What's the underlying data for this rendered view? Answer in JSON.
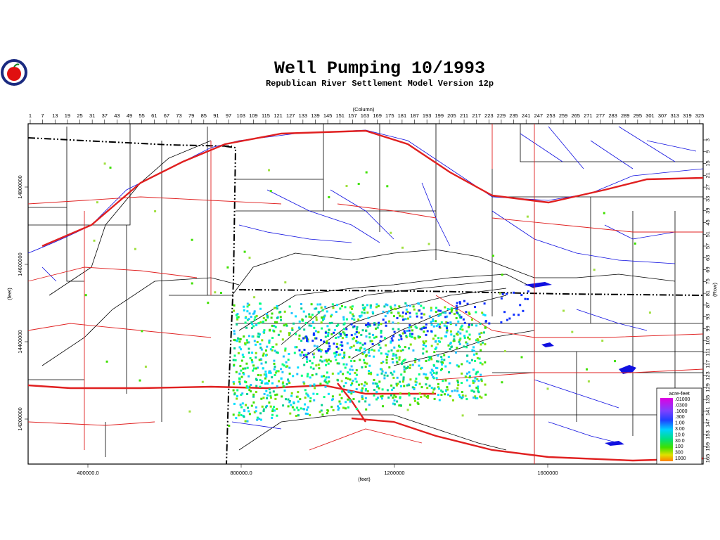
{
  "header": {
    "title": "Well Pumping 10/1993",
    "subtitle": "Republican River Settlement Model Version 12p"
  },
  "axes": {
    "column_label": "(Column)",
    "column_ticks": [
      1,
      7,
      13,
      19,
      25,
      31,
      37,
      43,
      49,
      55,
      61,
      67,
      73,
      79,
      85,
      91,
      97,
      103,
      109,
      115,
      121,
      127,
      133,
      139,
      145,
      151,
      157,
      163,
      169,
      175,
      181,
      187,
      193,
      199,
      205,
      211,
      217,
      223,
      229,
      235,
      241,
      247,
      253,
      259,
      265,
      271,
      277,
      283,
      289,
      295,
      301,
      307,
      313,
      319,
      325
    ],
    "row_label": "(Row)",
    "row_ticks": [
      3,
      9,
      15,
      21,
      27,
      33,
      39,
      45,
      51,
      57,
      63,
      69,
      75,
      81,
      87,
      93,
      99,
      105,
      111,
      117,
      123,
      129,
      135,
      141,
      147,
      153,
      159,
      165
    ],
    "x_label": "(feet)",
    "x_ticks": [
      "400000.0",
      "800000.0",
      "1200000",
      "1600000"
    ],
    "y_label": "(feet)",
    "y_ticks": [
      "14800000",
      "14600000",
      "14400000",
      "14200000"
    ]
  },
  "legend": {
    "title": "acre-feet",
    "labels": [
      ".01000",
      ".0300",
      ".1000",
      ".300",
      "1.00",
      "3.00",
      "10.0",
      "30.0",
      "100",
      "300",
      "1000"
    ]
  }
}
